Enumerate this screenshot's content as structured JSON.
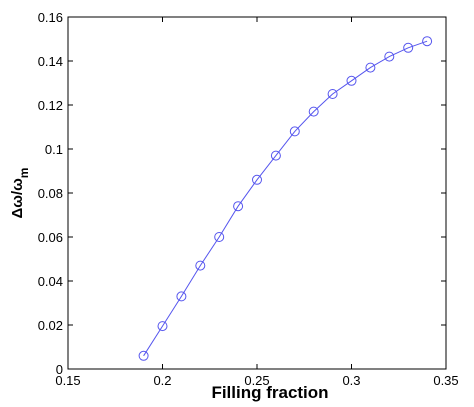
{
  "chart_data": {
    "type": "line",
    "xlabel": "Filling fraction",
    "ylabel": {
      "text": "Δω/ω",
      "subscript": "m"
    },
    "x": [
      0.19,
      0.2,
      0.21,
      0.22,
      0.23,
      0.24,
      0.25,
      0.26,
      0.27,
      0.28,
      0.29,
      0.3,
      0.31,
      0.32,
      0.33,
      0.34
    ],
    "series": [
      {
        "color": "#5555ee",
        "marker": "circle",
        "values": [
          0.006,
          0.0195,
          0.033,
          0.047,
          0.06,
          0.074,
          0.086,
          0.097,
          0.108,
          0.117,
          0.125,
          0.131,
          0.137,
          0.142,
          0.146,
          0.149
        ]
      }
    ],
    "xlim": [
      0.15,
      0.35
    ],
    "xticks": [
      0.15,
      0.2,
      0.25,
      0.3,
      0.35
    ],
    "ylim": [
      0,
      0.16
    ],
    "yticks": [
      0,
      0.02,
      0.04,
      0.06,
      0.08,
      0.1,
      0.12,
      0.14,
      0.16
    ]
  }
}
